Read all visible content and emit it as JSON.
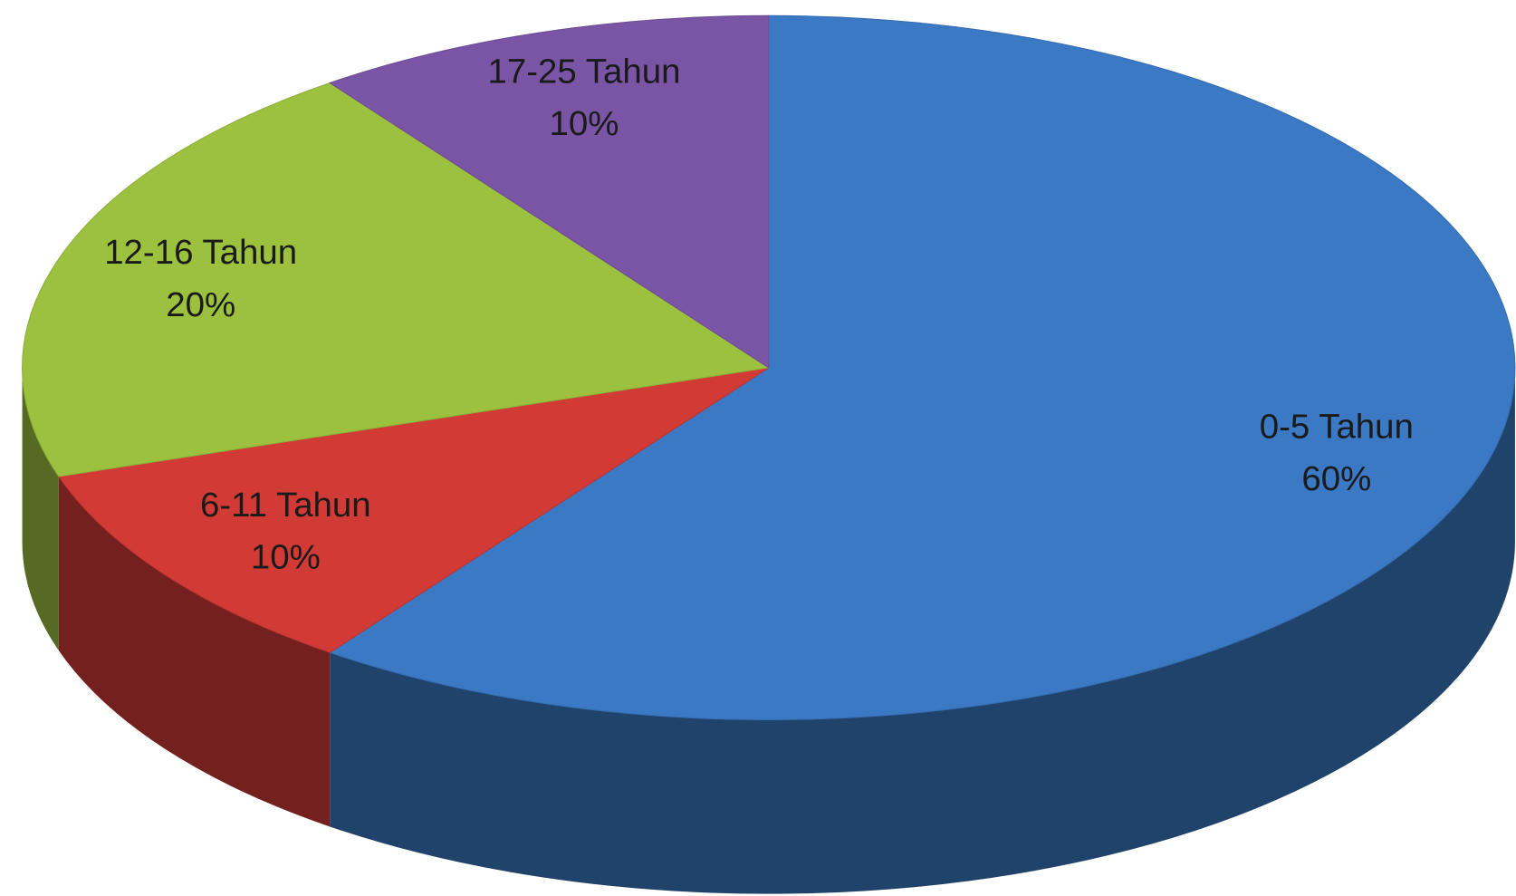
{
  "chart_data": {
    "type": "pie",
    "categories": [
      "0-5 Tahun",
      "6-11 Tahun",
      "12-16 Tahun",
      "17-25 Tahun"
    ],
    "values": [
      60,
      10,
      20,
      10
    ],
    "value_labels": [
      "60%",
      "10%",
      "20%",
      "10%"
    ],
    "colors": [
      "#3b79c4",
      "#d23a36",
      "#9cc13f",
      "#7a55a6"
    ]
  }
}
